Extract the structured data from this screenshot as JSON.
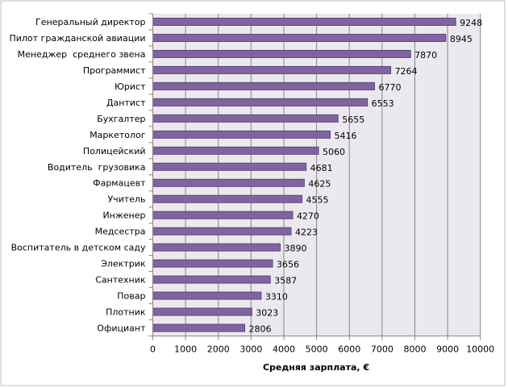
{
  "chart_data": {
    "type": "bar",
    "orientation": "horizontal",
    "title": "",
    "xlabel": "Средняя зарплата,  €",
    "ylabel": "",
    "xlim": [
      0,
      10000
    ],
    "xticks": [
      0,
      1000,
      2000,
      3000,
      4000,
      5000,
      6000,
      7000,
      8000,
      9000,
      10000
    ],
    "grid": true,
    "categories": [
      "Генеральный директор",
      "Пилот гражданской авиации",
      "Менеджер  среднего звена",
      "Программист",
      "Юрист",
      "Дантист",
      "Бухгалтер",
      "Маркетолог",
      "Полицейский",
      "Водитель  грузовика",
      "Фармацевт",
      "Учитель",
      "Инженер",
      "Медсестра",
      "Воспитатель в детском саду",
      "Электрик",
      "Сантехник",
      "Повар",
      "Плотник",
      "Официант"
    ],
    "values": [
      9248,
      8945,
      7870,
      7264,
      6770,
      6553,
      5655,
      5416,
      5060,
      4681,
      4625,
      4555,
      4270,
      4223,
      3890,
      3656,
      3587,
      3310,
      3023,
      2806
    ],
    "colors": {
      "bar": "#8064a2",
      "bar_border": "#5c4776",
      "plot_bg": "#ebe9ef",
      "grid": "#868686"
    }
  }
}
